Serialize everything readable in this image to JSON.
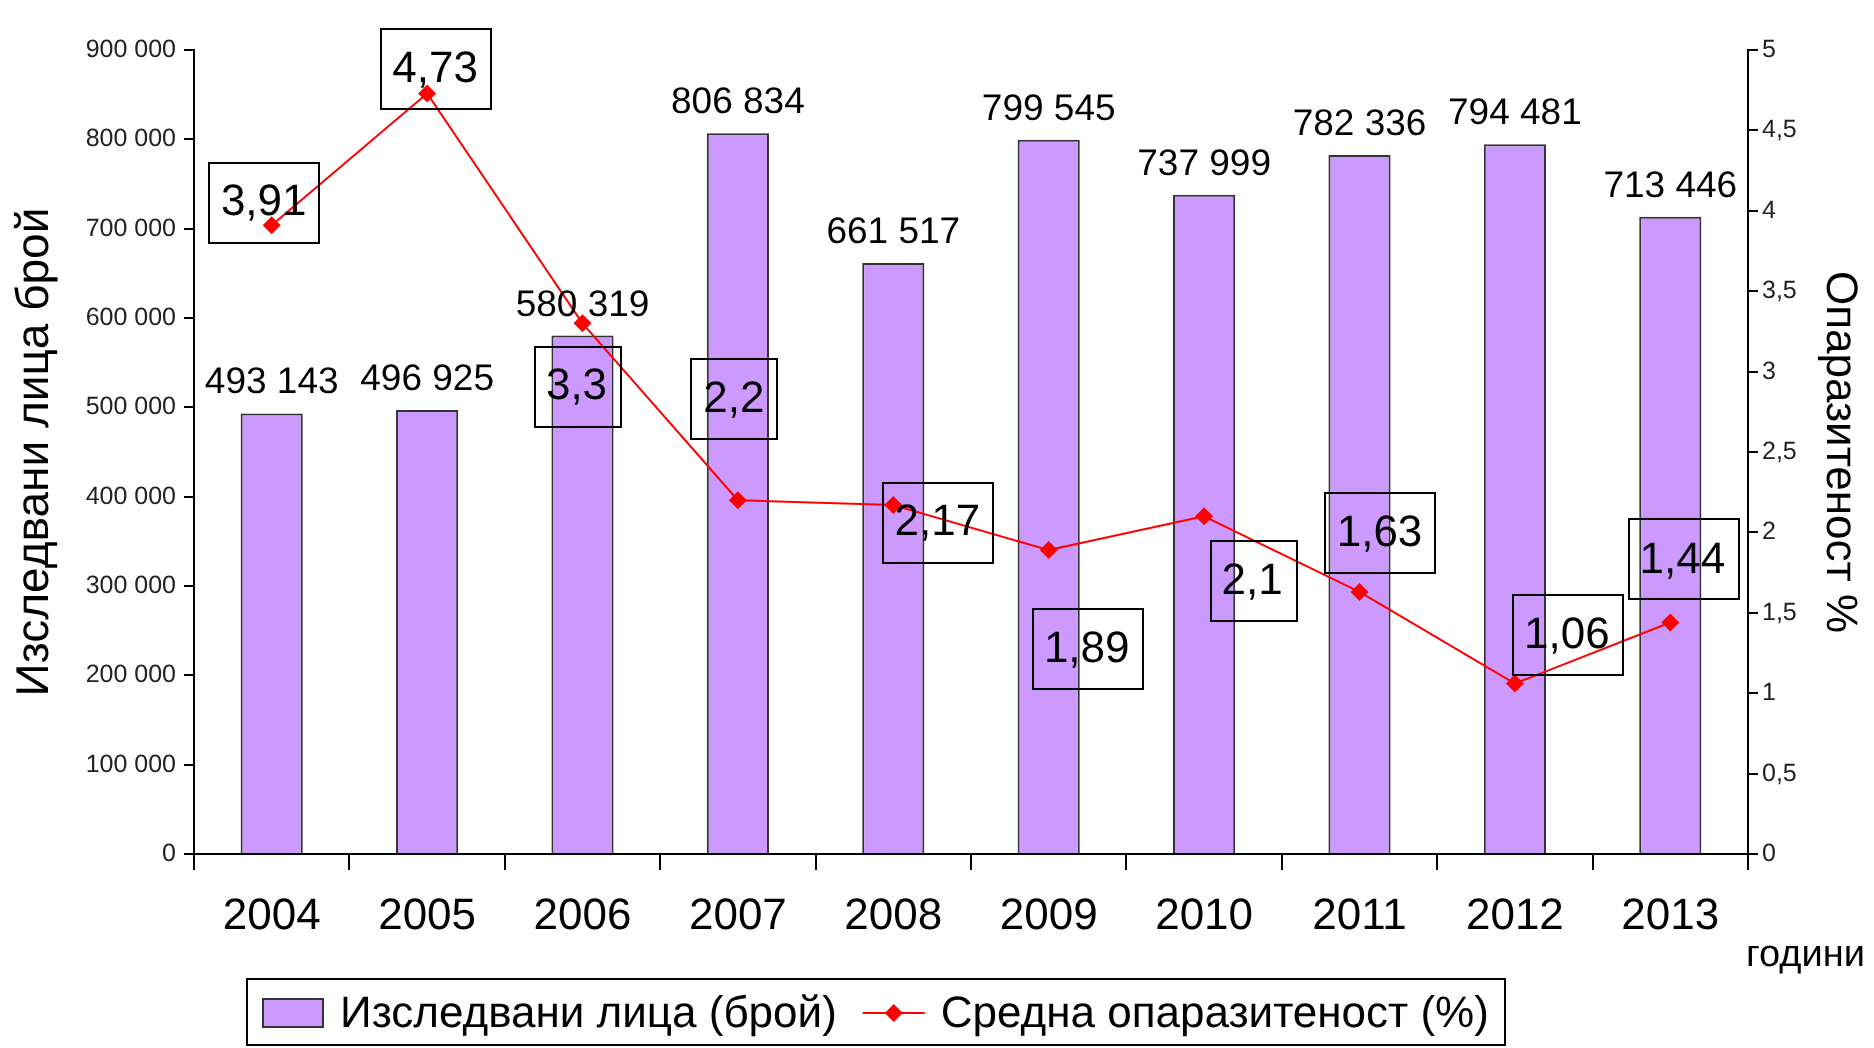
{
  "chart_data": {
    "type": "bar",
    "xlabel": "години",
    "ylabel": "Изследвани лица брой",
    "y2label": "Опаразитеност %",
    "categories": [
      "2004",
      "2005",
      "2006",
      "2007",
      "2008",
      "2009",
      "2010",
      "2011",
      "2012",
      "2013"
    ],
    "series": [
      {
        "name": "Изследвани лица (брой)",
        "color": "#cc99ff",
        "values": [
          493143,
          496925,
          580319,
          806834,
          661517,
          799545,
          737999,
          782336,
          794481,
          713446
        ],
        "value_labels": [
          "493 143",
          "496 925",
          "580 319",
          "806 834",
          "661 517",
          "799 545",
          "737 999",
          "782 336",
          "794 481",
          "713 446"
        ]
      },
      {
        "name": "Средна опаразитеност (%)",
        "type": "line",
        "axis": "y2",
        "color": "#ff0000",
        "marker": "diamond",
        "values": [
          3.91,
          4.73,
          3.3,
          2.2,
          2.17,
          1.89,
          2.1,
          1.63,
          1.06,
          1.44
        ],
        "value_labels": [
          "3,91",
          "4,73",
          "3,3",
          "2,2",
          "2,17",
          "1,89",
          "2,1",
          "1,63",
          "1,06",
          "1,44"
        ]
      }
    ],
    "ylim": [
      0,
      900000
    ],
    "yticks": [
      0,
      {
        "value": 100000,
        "label": "100 000"
      },
      {
        "value": 200000,
        "label": "200 000"
      },
      {
        "value": 300000,
        "label": "300 000"
      },
      {
        "value": 400000,
        "label": "400 000"
      },
      {
        "value": 500000,
        "label": "500 000"
      },
      {
        "value": 600000,
        "label": "600 000"
      },
      {
        "value": 700000,
        "label": "700 000"
      },
      {
        "value": 800000,
        "label": "800 000"
      },
      {
        "value": 900000,
        "label": "900 000"
      }
    ],
    "y2lim": [
      0,
      5
    ],
    "y2ticks": [
      0,
      {
        "value": 0.5,
        "label": "0,5"
      },
      1,
      {
        "value": 1.5,
        "label": "1,5"
      },
      2,
      {
        "value": 2.5,
        "label": "2,5"
      },
      3,
      {
        "value": 3.5,
        "label": "3,5"
      },
      4,
      {
        "value": 4.5,
        "label": "4,5"
      },
      5
    ],
    "grid": false,
    "legend": "bottom"
  }
}
